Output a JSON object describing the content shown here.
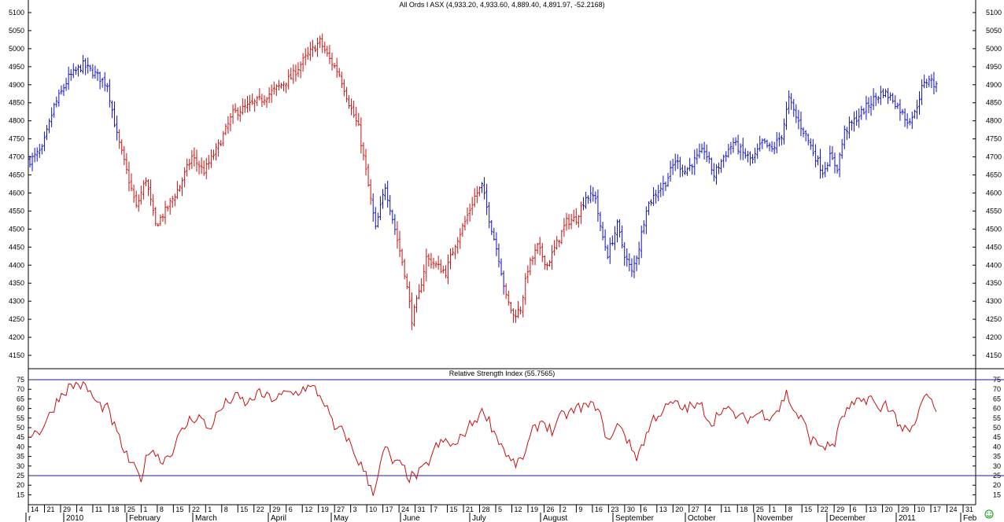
{
  "chart_data": [
    {
      "type": "ohlc",
      "title": "All Ords I  ASX (4,933.20, 4,933.60, 4,889.40, 4,891.97, -52.2168)",
      "ylim": [
        4100,
        5125
      ],
      "y_ticks": [
        "5100",
        "5050",
        "5000",
        "4950",
        "4900",
        "4850",
        "4800",
        "4750",
        "4700",
        "4650",
        "4600",
        "4550",
        "4500",
        "4450",
        "4400",
        "4350",
        "4300",
        "4250",
        "4200",
        "4150"
      ],
      "colors": {
        "up_trend": "#1010c8",
        "down_trend": "#c81010"
      },
      "grid": false,
      "close_path": [
        {
          "i": 0,
          "v": 4690
        },
        {
          "i": 5,
          "v": 4720
        },
        {
          "i": 10,
          "v": 4840
        },
        {
          "i": 16,
          "v": 4920
        },
        {
          "i": 22,
          "v": 4955
        },
        {
          "i": 27,
          "v": 4930
        },
        {
          "i": 32,
          "v": 4900
        },
        {
          "i": 36,
          "v": 4760
        },
        {
          "i": 40,
          "v": 4660
        },
        {
          "i": 44,
          "v": 4560
        },
        {
          "i": 48,
          "v": 4640
        },
        {
          "i": 52,
          "v": 4510
        },
        {
          "i": 57,
          "v": 4560
        },
        {
          "i": 62,
          "v": 4620
        },
        {
          "i": 67,
          "v": 4700
        },
        {
          "i": 72,
          "v": 4660
        },
        {
          "i": 78,
          "v": 4730
        },
        {
          "i": 84,
          "v": 4820
        },
        {
          "i": 90,
          "v": 4840
        },
        {
          "i": 96,
          "v": 4860
        },
        {
          "i": 102,
          "v": 4890
        },
        {
          "i": 108,
          "v": 4920
        },
        {
          "i": 114,
          "v": 4975
        },
        {
          "i": 120,
          "v": 5020
        },
        {
          "i": 124,
          "v": 4970
        },
        {
          "i": 128,
          "v": 4930
        },
        {
          "i": 132,
          "v": 4850
        },
        {
          "i": 136,
          "v": 4780
        },
        {
          "i": 140,
          "v": 4620
        },
        {
          "i": 143,
          "v": 4500
        },
        {
          "i": 147,
          "v": 4620
        },
        {
          "i": 151,
          "v": 4500
        },
        {
          "i": 155,
          "v": 4380
        },
        {
          "i": 158,
          "v": 4250
        },
        {
          "i": 161,
          "v": 4320
        },
        {
          "i": 164,
          "v": 4420
        },
        {
          "i": 168,
          "v": 4400
        },
        {
          "i": 172,
          "v": 4380
        },
        {
          "i": 176,
          "v": 4460
        },
        {
          "i": 180,
          "v": 4520
        },
        {
          "i": 184,
          "v": 4590
        },
        {
          "i": 187,
          "v": 4620
        },
        {
          "i": 190,
          "v": 4530
        },
        {
          "i": 194,
          "v": 4420
        },
        {
          "i": 197,
          "v": 4310
        },
        {
          "i": 200,
          "v": 4260
        },
        {
          "i": 203,
          "v": 4280
        },
        {
          "i": 206,
          "v": 4390
        },
        {
          "i": 210,
          "v": 4450
        },
        {
          "i": 214,
          "v": 4400
        },
        {
          "i": 218,
          "v": 4460
        },
        {
          "i": 222,
          "v": 4520
        },
        {
          "i": 226,
          "v": 4530
        },
        {
          "i": 230,
          "v": 4590
        },
        {
          "i": 234,
          "v": 4590
        },
        {
          "i": 236,
          "v": 4500
        },
        {
          "i": 239,
          "v": 4430
        },
        {
          "i": 243,
          "v": 4510
        },
        {
          "i": 246,
          "v": 4430
        },
        {
          "i": 249,
          "v": 4380
        },
        {
          "i": 252,
          "v": 4450
        },
        {
          "i": 255,
          "v": 4560
        },
        {
          "i": 259,
          "v": 4600
        },
        {
          "i": 263,
          "v": 4630
        },
        {
          "i": 267,
          "v": 4690
        },
        {
          "i": 271,
          "v": 4660
        },
        {
          "i": 275,
          "v": 4690
        },
        {
          "i": 279,
          "v": 4720
        },
        {
          "i": 283,
          "v": 4650
        },
        {
          "i": 287,
          "v": 4700
        },
        {
          "i": 291,
          "v": 4740
        },
        {
          "i": 295,
          "v": 4710
        },
        {
          "i": 299,
          "v": 4690
        },
        {
          "i": 303,
          "v": 4740
        },
        {
          "i": 307,
          "v": 4720
        },
        {
          "i": 311,
          "v": 4760
        },
        {
          "i": 314,
          "v": 4860
        },
        {
          "i": 317,
          "v": 4810
        },
        {
          "i": 321,
          "v": 4760
        },
        {
          "i": 325,
          "v": 4700
        },
        {
          "i": 328,
          "v": 4660
        },
        {
          "i": 331,
          "v": 4700
        },
        {
          "i": 334,
          "v": 4670
        },
        {
          "i": 337,
          "v": 4770
        },
        {
          "i": 341,
          "v": 4800
        },
        {
          "i": 345,
          "v": 4830
        },
        {
          "i": 349,
          "v": 4860
        },
        {
          "i": 353,
          "v": 4880
        },
        {
          "i": 357,
          "v": 4860
        },
        {
          "i": 360,
          "v": 4830
        },
        {
          "i": 363,
          "v": 4800
        },
        {
          "i": 366,
          "v": 4820
        },
        {
          "i": 369,
          "v": 4890
        },
        {
          "i": 372,
          "v": 4920
        },
        {
          "i": 375,
          "v": 4892
        }
      ],
      "down_segments": [
        [
          37,
          141
        ],
        [
          152,
          186
        ],
        [
          197,
          228
        ]
      ]
    },
    {
      "type": "line",
      "title": "Relative Strength Index (55.7565)",
      "ylim": [
        10,
        76
      ],
      "y_ticks": [
        "75",
        "70",
        "65",
        "60",
        "55",
        "50",
        "45",
        "40",
        "35",
        "30",
        "25",
        "20",
        "15"
      ],
      "reference_lines": [
        75,
        25
      ],
      "color": "#c81010",
      "path": [
        {
          "i": 0,
          "v": 47
        },
        {
          "i": 4,
          "v": 48
        },
        {
          "i": 8,
          "v": 56
        },
        {
          "i": 12,
          "v": 66
        },
        {
          "i": 16,
          "v": 71
        },
        {
          "i": 20,
          "v": 73
        },
        {
          "i": 24,
          "v": 70
        },
        {
          "i": 28,
          "v": 62
        },
        {
          "i": 32,
          "v": 60
        },
        {
          "i": 36,
          "v": 47
        },
        {
          "i": 40,
          "v": 35
        },
        {
          "i": 44,
          "v": 27
        },
        {
          "i": 46,
          "v": 24
        },
        {
          "i": 48,
          "v": 33
        },
        {
          "i": 50,
          "v": 40
        },
        {
          "i": 54,
          "v": 33
        },
        {
          "i": 58,
          "v": 36
        },
        {
          "i": 62,
          "v": 46
        },
        {
          "i": 66,
          "v": 54
        },
        {
          "i": 70,
          "v": 56
        },
        {
          "i": 74,
          "v": 49
        },
        {
          "i": 78,
          "v": 58
        },
        {
          "i": 82,
          "v": 64
        },
        {
          "i": 86,
          "v": 66
        },
        {
          "i": 90,
          "v": 62
        },
        {
          "i": 94,
          "v": 68
        },
        {
          "i": 98,
          "v": 66
        },
        {
          "i": 102,
          "v": 65
        },
        {
          "i": 106,
          "v": 68
        },
        {
          "i": 110,
          "v": 68
        },
        {
          "i": 114,
          "v": 71
        },
        {
          "i": 118,
          "v": 70
        },
        {
          "i": 122,
          "v": 63
        },
        {
          "i": 126,
          "v": 49
        },
        {
          "i": 130,
          "v": 48
        },
        {
          "i": 134,
          "v": 37
        },
        {
          "i": 138,
          "v": 28
        },
        {
          "i": 140,
          "v": 22
        },
        {
          "i": 142,
          "v": 17
        },
        {
          "i": 144,
          "v": 25
        },
        {
          "i": 147,
          "v": 40
        },
        {
          "i": 150,
          "v": 32
        },
        {
          "i": 154,
          "v": 30
        },
        {
          "i": 157,
          "v": 24
        },
        {
          "i": 160,
          "v": 25
        },
        {
          "i": 164,
          "v": 30
        },
        {
          "i": 168,
          "v": 40
        },
        {
          "i": 172,
          "v": 43
        },
        {
          "i": 176,
          "v": 40
        },
        {
          "i": 180,
          "v": 48
        },
        {
          "i": 184,
          "v": 54
        },
        {
          "i": 188,
          "v": 59
        },
        {
          "i": 192,
          "v": 48
        },
        {
          "i": 196,
          "v": 39
        },
        {
          "i": 199,
          "v": 32
        },
        {
          "i": 202,
          "v": 31
        },
        {
          "i": 205,
          "v": 37
        },
        {
          "i": 208,
          "v": 48
        },
        {
          "i": 212,
          "v": 54
        },
        {
          "i": 216,
          "v": 48
        },
        {
          "i": 220,
          "v": 56
        },
        {
          "i": 224,
          "v": 58
        },
        {
          "i": 228,
          "v": 61
        },
        {
          "i": 232,
          "v": 61
        },
        {
          "i": 235,
          "v": 62
        },
        {
          "i": 237,
          "v": 50
        },
        {
          "i": 240,
          "v": 43
        },
        {
          "i": 244,
          "v": 53
        },
        {
          "i": 248,
          "v": 41
        },
        {
          "i": 251,
          "v": 35
        },
        {
          "i": 254,
          "v": 43
        },
        {
          "i": 258,
          "v": 55
        },
        {
          "i": 262,
          "v": 59
        },
        {
          "i": 266,
          "v": 63
        },
        {
          "i": 270,
          "v": 60
        },
        {
          "i": 274,
          "v": 61
        },
        {
          "i": 278,
          "v": 61
        },
        {
          "i": 282,
          "v": 52
        },
        {
          "i": 286,
          "v": 60
        },
        {
          "i": 290,
          "v": 58
        },
        {
          "i": 294,
          "v": 55
        },
        {
          "i": 298,
          "v": 55
        },
        {
          "i": 302,
          "v": 58
        },
        {
          "i": 306,
          "v": 56
        },
        {
          "i": 310,
          "v": 60
        },
        {
          "i": 313,
          "v": 68
        },
        {
          "i": 316,
          "v": 59
        },
        {
          "i": 320,
          "v": 53
        },
        {
          "i": 323,
          "v": 44
        },
        {
          "i": 327,
          "v": 41
        },
        {
          "i": 330,
          "v": 40
        },
        {
          "i": 333,
          "v": 42
        },
        {
          "i": 336,
          "v": 56
        },
        {
          "i": 340,
          "v": 61
        },
        {
          "i": 344,
          "v": 64
        },
        {
          "i": 348,
          "v": 66
        },
        {
          "i": 351,
          "v": 58
        },
        {
          "i": 354,
          "v": 63
        },
        {
          "i": 357,
          "v": 58
        },
        {
          "i": 360,
          "v": 51
        },
        {
          "i": 363,
          "v": 47
        },
        {
          "i": 366,
          "v": 50
        },
        {
          "i": 369,
          "v": 64
        },
        {
          "i": 372,
          "v": 67
        },
        {
          "i": 375,
          "v": 55.8
        }
      ]
    }
  ],
  "x_axis": {
    "day_ticks": [
      "14",
      "21",
      "29",
      "4",
      "11",
      "18",
      "25",
      "1",
      "8",
      "15",
      "22",
      "1",
      "8",
      "15",
      "22",
      "29",
      "6",
      "12",
      "19",
      "27",
      "3",
      "10",
      "17",
      "24",
      "31",
      "7",
      "15",
      "21",
      "28",
      "5",
      "12",
      "19",
      "26",
      "2",
      "9",
      "16",
      "23",
      "30",
      "6",
      "13",
      "20",
      "27",
      "4",
      "11",
      "18",
      "25",
      "1",
      "8",
      "15",
      "22",
      "29",
      "6",
      "13",
      "20",
      "29",
      "10",
      "17",
      "24",
      "31"
    ],
    "month_labels": [
      "r",
      "2010",
      "February",
      "March",
      "April",
      "May",
      "June",
      "July",
      "August",
      "September",
      "October",
      "November",
      "December",
      "2011",
      "Feb"
    ]
  },
  "icons": {
    "corner": "smiley-icon"
  }
}
